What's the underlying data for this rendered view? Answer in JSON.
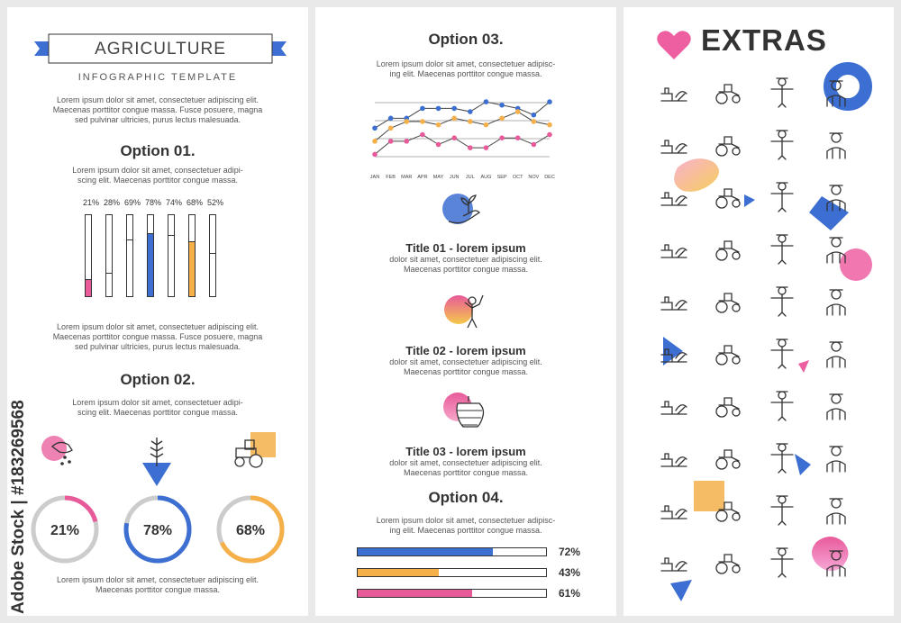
{
  "left": {
    "title": "AGRICULTURE",
    "subtitle": "INFOGRAPHIC TEMPLATE",
    "intro": [
      "Lorem ipsum dolor sit amet, consectetuer adipiscing elit.",
      "Maecenas porttitor congue massa. Fusce posuere, magna",
      "sed pulvinar ultricies, purus lectus malesuada."
    ],
    "option1": {
      "heading": "Option 01.",
      "text": [
        "Lorem ipsum dolor sit amet, consectetuer adipi-",
        "scing elit. Maecenas porttitor congue massa."
      ],
      "bars": [
        {
          "label": "21%",
          "value": 0.21,
          "color": "#e85a9a"
        },
        {
          "label": "28%",
          "value": 0.28,
          "color": null
        },
        {
          "label": "69%",
          "value": 0.69,
          "color": null
        },
        {
          "label": "78%",
          "value": 0.78,
          "color": "#3c6fd1"
        },
        {
          "label": "74%",
          "value": 0.74,
          "color": null
        },
        {
          "label": "68%",
          "value": 0.68,
          "color": "#f5b04a"
        },
        {
          "label": "52%",
          "value": 0.52,
          "color": null
        }
      ],
      "after_text": [
        "Lorem ipsum dolor sit amet, consectetuer adipiscing elit.",
        "Maecenas porttitor congue massa. Fusce posuere, magna",
        "sed pulvinar ultricies, purus lectus malesuada."
      ]
    },
    "option2": {
      "heading": "Option 02.",
      "text": [
        "Lorem ipsum dolor sit amet, consectetuer adipi-",
        "scing elit. Maecenas porttitor congue massa."
      ],
      "donuts": [
        {
          "label": "21%",
          "value": 0.21,
          "color": "#e85a9a",
          "icon": "seed-hand-icon"
        },
        {
          "label": "78%",
          "value": 0.78,
          "color": "#3c6fd1",
          "icon": "wheat-icon"
        },
        {
          "label": "68%",
          "value": 0.68,
          "color": "#f5b04a",
          "icon": "tractor-icon"
        }
      ],
      "footer": [
        "Lorem ipsum dolor sit amet, consectetuer adipiscing elit.",
        "Maecenas porttitor congue massa."
      ]
    }
  },
  "middle": {
    "option3": {
      "heading": "Option 03.",
      "text": [
        "Lorem ipsum dolor sit amet, consectetuer adipisc-",
        "ing elit. Maecenas porttitor congue massa."
      ]
    },
    "items": [
      {
        "title": "Title 01 - lorem ipsum",
        "text": [
          "dolor sit amet, consectetuer adipiscing elit.",
          "Maecenas porttitor congue massa."
        ],
        "icon": "sprout-hand-icon"
      },
      {
        "title": "Title 02 - lorem ipsum",
        "text": [
          "dolor sit amet, consectetuer adipiscing elit.",
          "Maecenas porttitor congue massa."
        ],
        "icon": "farmer-icon"
      },
      {
        "title": "Title 03 - lorem ipsum",
        "text": [
          "dolor sit amet, consectetuer adipiscing elit.",
          "Maecenas porttitor congue massa."
        ],
        "icon": "beehive-icon"
      }
    ],
    "option4": {
      "heading": "Option 04.",
      "text": [
        "Lorem ipsum dolor sit amet, consectetuer adipisc-",
        "ing elit. Maecenas porttitor congue massa."
      ],
      "bars": [
        {
          "label": "72%",
          "value": 0.72,
          "color": "#3c6fd1"
        },
        {
          "label": "43%",
          "value": 0.43,
          "color": "#f5b04a"
        },
        {
          "label": "61%",
          "value": 0.61,
          "color": "#e85a9a"
        }
      ]
    }
  },
  "right": {
    "title": "EXTRAS",
    "icons": [
      "farm-field-icon",
      "tractor-icon",
      "scarecrow-icon",
      "farmer-portrait-icon",
      "seed-hand-icon",
      "watering-can-icon",
      "sprout-hand-icon",
      "seedling-icon",
      "wheat-badge-icon",
      "grapes-icon",
      "apple-tree-icon",
      "apple-picker-icon",
      "harvester-icon",
      "farmer-hoe-icon",
      "farmer-shovel-icon",
      "pruning-shears-icon",
      "barn-silo-icon",
      "barn-icon",
      "tractor-side-icon",
      "tractor-front-icon",
      "cow-icon",
      "pig-icon",
      "rooster-icon",
      "chick-egg-icon",
      "sheep-icon",
      "goat-icon",
      "turkey-icon",
      "goose-icon",
      "honeycomb-icon",
      "beekeeping-icon",
      "beehive-icon",
      "pitchfork-icon",
      "lawn-mower-icon",
      "farmer-standing-icon",
      "apple-jar-icon",
      "bee-icon",
      "greenhouse-icon",
      "vegetable-basket-icon",
      "windmill-icon",
      "shovel-icon"
    ]
  },
  "watermark": "Adobe Stock | #183269568",
  "chart_data": [
    {
      "type": "line",
      "x": [
        "JAN",
        "FEB",
        "MAR",
        "APR",
        "MAY",
        "JUN",
        "JUL",
        "AUG",
        "SEP",
        "OCT",
        "NOV",
        "DEC"
      ],
      "series": [
        {
          "values": [
            2.4,
            3.0,
            3.0,
            3.6,
            3.6,
            3.6,
            3.4,
            4.0,
            3.8,
            3.6,
            3.2,
            4.0
          ],
          "color": "#3c6fd1"
        },
        {
          "values": [
            1.6,
            2.4,
            2.8,
            2.8,
            2.6,
            3.0,
            2.8,
            2.6,
            3.0,
            3.4,
            2.8,
            2.6
          ],
          "color": "#f5b04a"
        },
        {
          "values": [
            0.8,
            1.6,
            1.6,
            2.0,
            1.4,
            1.8,
            1.2,
            1.2,
            1.8,
            1.8,
            1.4,
            2.0
          ],
          "color": "#e85a9a"
        }
      ],
      "ylim": [
        0,
        4.5
      ]
    }
  ]
}
